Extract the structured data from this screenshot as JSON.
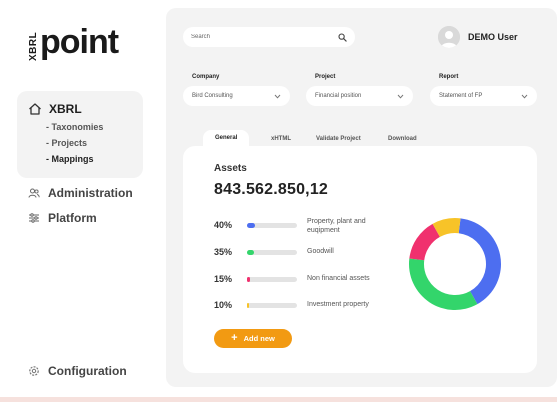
{
  "brand": {
    "prefix": "XBRL",
    "name": "point"
  },
  "sidebar": {
    "section": {
      "label": "XBRL",
      "items": [
        {
          "label": "- Taxonomies"
        },
        {
          "label": "- Projects"
        },
        {
          "label": "- Mappings"
        }
      ]
    },
    "administration": "Administration",
    "platform": "Platform",
    "configuration": "Configuration"
  },
  "search": {
    "placeholder": "Search"
  },
  "user": {
    "name": "DEMO User"
  },
  "filters": {
    "company": {
      "label": "Company",
      "value": "Bird Consulting"
    },
    "project": {
      "label": "Project",
      "value": "Financial position"
    },
    "report": {
      "label": "Report",
      "value": "Statement of FP"
    }
  },
  "tabs": [
    "General",
    "xHTML",
    "Validate Project",
    "Download"
  ],
  "assets": {
    "title": "Assets",
    "total": "843.562.850,12",
    "rows": [
      {
        "pct": "40%",
        "value": 40,
        "label": "Property, plant and euqipment",
        "color": "#4d6ef0"
      },
      {
        "pct": "35%",
        "value": 35,
        "label": "Goodwill",
        "color": "#33d56b"
      },
      {
        "pct": "15%",
        "value": 15,
        "label": "Non financial assets",
        "color": "#f0316e"
      },
      {
        "pct": "10%",
        "value": 10,
        "label": "Investment property",
        "color": "#f7c328"
      }
    ],
    "add_label": "Add new"
  },
  "colors": {
    "accent": "#f29a12"
  }
}
